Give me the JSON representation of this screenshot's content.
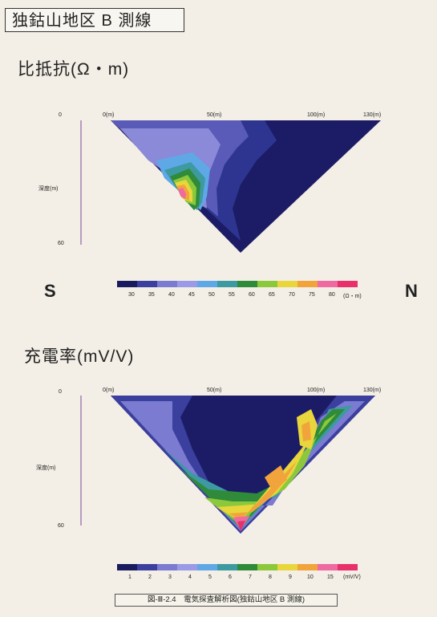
{
  "title": "独鈷山地区 B 測線",
  "direction": {
    "left": "S",
    "right": "N"
  },
  "resistivity": {
    "heading": "比抵抗(Ω・m)",
    "x_ticks": [
      "0(m)",
      "50(m)",
      "100(m)",
      "130(m)"
    ],
    "y_ticks": [
      "0",
      "60"
    ],
    "depth_label": "深度(m)",
    "scale_ticks": [
      "30",
      "35",
      "40",
      "45",
      "50",
      "55",
      "60",
      "65",
      "70",
      "75",
      "80"
    ],
    "unit": "(Ω・m)",
    "colors": [
      "#1a1a5e",
      "#3b3f9e",
      "#7b7bd1",
      "#9a9ae6",
      "#5fa8e6",
      "#3c9aa0",
      "#2f8a3a",
      "#8cc83c",
      "#e8d63c",
      "#f2a43c",
      "#ef6aa0",
      "#e8306a"
    ]
  },
  "chargeability": {
    "heading": "充電率(mV/V)",
    "x_ticks": [
      "0(m)",
      "50(m)",
      "100(m)",
      "130(m)"
    ],
    "y_ticks": [
      "0",
      "60"
    ],
    "depth_label": "深度(m)",
    "scale_ticks": [
      "1",
      "2",
      "3",
      "4",
      "5",
      "6",
      "7",
      "8",
      "9",
      "10",
      "15"
    ],
    "unit": "(mV/V)",
    "colors": [
      "#1a1a5e",
      "#3b3f9e",
      "#7b7bd1",
      "#9a9ae6",
      "#5fa8e6",
      "#3c9aa0",
      "#2f8a3a",
      "#8cc83c",
      "#e8d63c",
      "#f2a43c",
      "#ef6aa0",
      "#e8306a"
    ]
  },
  "caption": "図-Ⅲ-2.4　電気探査解析図(独鈷山地区 B 測線)"
}
